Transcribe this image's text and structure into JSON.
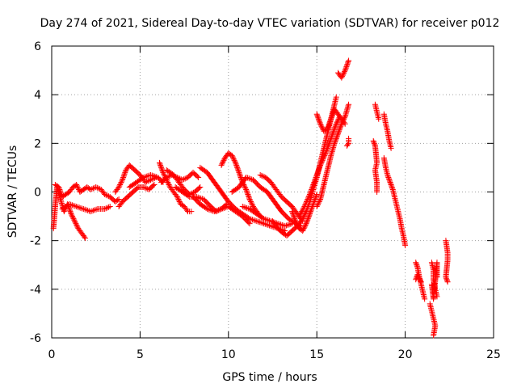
{
  "chart_data": {
    "type": "scatter",
    "title": "Day 274 of 2021, Sidereal Day-to-day VTEC variation (SDTVAR) for receiver p012",
    "xlabel": "GPS time / hours",
    "ylabel": "SDTVAR / TECUs",
    "xlim": [
      0,
      25
    ],
    "ylim": [
      -6,
      6
    ],
    "xticks": [
      0,
      5,
      10,
      15,
      20,
      25
    ],
    "yticks": [
      -6,
      -4,
      -2,
      0,
      2,
      4,
      6
    ],
    "grid": true,
    "marker": "+",
    "color": "#ff0000",
    "series": [
      {
        "name": "SDTVAR",
        "tracks": [
          [
            [
              0.1,
              -1.5
            ],
            [
              0.2,
              -0.6
            ],
            [
              0.3,
              0.2
            ],
            [
              0.5,
              -0.3
            ],
            [
              0.7,
              -0.8
            ],
            [
              0.9,
              -0.5
            ],
            [
              1.1,
              -0.9
            ],
            [
              1.3,
              -1.2
            ],
            [
              1.5,
              -1.5
            ],
            [
              1.7,
              -1.7
            ],
            [
              1.9,
              -1.9
            ]
          ],
          [
            [
              0.2,
              0.3
            ],
            [
              0.4,
              0.2
            ],
            [
              0.6,
              -0.2
            ],
            [
              0.8,
              -0.1
            ],
            [
              1.0,
              0.0
            ],
            [
              1.2,
              0.2
            ],
            [
              1.4,
              0.3
            ],
            [
              1.6,
              0.0
            ],
            [
              1.8,
              0.1
            ],
            [
              2.0,
              0.2
            ],
            [
              2.2,
              0.1
            ],
            [
              2.5,
              0.2
            ],
            [
              2.8,
              0.1
            ],
            [
              3.0,
              -0.1
            ],
            [
              3.3,
              -0.2
            ],
            [
              3.6,
              -0.4
            ],
            [
              3.8,
              -0.3
            ]
          ],
          [
            [
              0.6,
              -0.7
            ],
            [
              1.0,
              -0.5
            ],
            [
              1.4,
              -0.6
            ],
            [
              1.8,
              -0.7
            ],
            [
              2.2,
              -0.8
            ],
            [
              2.6,
              -0.7
            ],
            [
              3.0,
              -0.7
            ],
            [
              3.3,
              -0.6
            ]
          ],
          [
            [
              3.6,
              0.0
            ],
            [
              3.8,
              0.2
            ],
            [
              4.0,
              0.5
            ],
            [
              4.2,
              0.9
            ],
            [
              4.4,
              1.1
            ],
            [
              4.7,
              0.9
            ],
            [
              5.0,
              0.7
            ],
            [
              5.3,
              0.4
            ],
            [
              5.6,
              0.5
            ],
            [
              5.9,
              0.6
            ]
          ],
          [
            [
              3.8,
              -0.6
            ],
            [
              4.0,
              -0.4
            ],
            [
              4.3,
              -0.2
            ],
            [
              4.6,
              0.0
            ],
            [
              4.9,
              0.2
            ],
            [
              5.2,
              0.2
            ],
            [
              5.5,
              0.1
            ],
            [
              5.8,
              0.3
            ]
          ],
          [
            [
              4.4,
              0.2
            ],
            [
              4.8,
              0.4
            ],
            [
              5.2,
              0.6
            ],
            [
              5.6,
              0.7
            ],
            [
              6.0,
              0.6
            ],
            [
              6.3,
              0.4
            ]
          ],
          [
            [
              6.1,
              1.2
            ],
            [
              6.3,
              0.8
            ],
            [
              6.5,
              0.5
            ],
            [
              6.7,
              0.2
            ],
            [
              6.9,
              0.0
            ],
            [
              7.1,
              -0.2
            ],
            [
              7.3,
              -0.5
            ],
            [
              7.5,
              -0.6
            ],
            [
              7.7,
              -0.8
            ],
            [
              7.9,
              -0.8
            ]
          ],
          [
            [
              6.2,
              0.4
            ],
            [
              6.5,
              0.6
            ],
            [
              6.8,
              0.7
            ],
            [
              7.1,
              0.6
            ],
            [
              7.4,
              0.5
            ],
            [
              7.7,
              0.6
            ],
            [
              8.0,
              0.8
            ],
            [
              8.3,
              0.6
            ]
          ],
          [
            [
              6.5,
              0.9
            ],
            [
              6.9,
              0.7
            ],
            [
              7.2,
              0.4
            ],
            [
              7.5,
              0.1
            ],
            [
              7.8,
              -0.1
            ],
            [
              8.1,
              0.0
            ],
            [
              8.4,
              0.2
            ]
          ],
          [
            [
              7.0,
              0.2
            ],
            [
              7.4,
              0.0
            ],
            [
              7.8,
              -0.2
            ],
            [
              8.2,
              -0.2
            ],
            [
              8.6,
              -0.3
            ],
            [
              9.0,
              -0.6
            ],
            [
              9.3,
              -0.8
            ],
            [
              9.6,
              -0.7
            ],
            [
              9.9,
              -0.5
            ]
          ],
          [
            [
              8.4,
              1.0
            ],
            [
              8.8,
              0.8
            ],
            [
              9.2,
              0.4
            ],
            [
              9.6,
              0.0
            ],
            [
              10.0,
              -0.4
            ],
            [
              10.4,
              -0.7
            ],
            [
              10.8,
              -0.9
            ],
            [
              11.2,
              -1.1
            ],
            [
              11.6,
              -1.2
            ],
            [
              12.0,
              -1.3
            ],
            [
              12.4,
              -1.4
            ],
            [
              12.8,
              -1.5
            ],
            [
              13.2,
              -1.6
            ]
          ],
          [
            [
              8.0,
              -0.2
            ],
            [
              8.4,
              -0.5
            ],
            [
              8.8,
              -0.7
            ],
            [
              9.2,
              -0.8
            ],
            [
              9.6,
              -0.7
            ],
            [
              10.0,
              -0.6
            ],
            [
              10.4,
              -0.8
            ],
            [
              10.8,
              -1.0
            ],
            [
              11.2,
              -1.3
            ]
          ],
          [
            [
              9.6,
              1.1
            ],
            [
              9.8,
              1.4
            ],
            [
              10.0,
              1.6
            ],
            [
              10.2,
              1.5
            ],
            [
              10.4,
              1.2
            ],
            [
              10.6,
              0.8
            ],
            [
              10.8,
              0.4
            ],
            [
              11.0,
              0.1
            ],
            [
              11.2,
              -0.3
            ],
            [
              11.4,
              -0.6
            ],
            [
              11.6,
              -0.8
            ],
            [
              11.8,
              -1.0
            ]
          ],
          [
            [
              10.2,
              0.0
            ],
            [
              10.6,
              0.2
            ],
            [
              11.0,
              0.6
            ],
            [
              11.4,
              0.5
            ],
            [
              11.8,
              0.2
            ],
            [
              12.2,
              0.0
            ],
            [
              12.6,
              -0.4
            ],
            [
              13.0,
              -0.8
            ],
            [
              13.4,
              -1.1
            ],
            [
              13.8,
              -1.3
            ],
            [
              14.1,
              -1.4
            ]
          ],
          [
            [
              10.8,
              -0.6
            ],
            [
              11.2,
              -0.7
            ],
            [
              11.6,
              -0.9
            ],
            [
              12.0,
              -1.1
            ],
            [
              12.4,
              -1.2
            ],
            [
              12.8,
              -1.3
            ],
            [
              13.2,
              -1.4
            ],
            [
              13.6,
              -1.3
            ]
          ],
          [
            [
              11.8,
              0.7
            ],
            [
              12.1,
              0.6
            ],
            [
              12.4,
              0.4
            ],
            [
              12.7,
              0.1
            ],
            [
              13.0,
              -0.2
            ],
            [
              13.3,
              -0.4
            ],
            [
              13.6,
              -0.6
            ],
            [
              13.9,
              -0.9
            ],
            [
              14.2,
              -1.2
            ]
          ],
          [
            [
              12.5,
              -1.2
            ],
            [
              12.8,
              -1.5
            ],
            [
              13.1,
              -1.7
            ],
            [
              13.3,
              -1.8
            ],
            [
              13.6,
              -1.6
            ],
            [
              13.9,
              -1.4
            ],
            [
              14.2,
              -1.1
            ],
            [
              14.4,
              -0.8
            ],
            [
              14.6,
              -0.4
            ],
            [
              14.8,
              0.1
            ],
            [
              15.0,
              0.6
            ],
            [
              15.2,
              1.2
            ],
            [
              15.4,
              1.8
            ],
            [
              15.6,
              2.4
            ],
            [
              15.8,
              3.0
            ],
            [
              16.0,
              3.6
            ],
            [
              16.1,
              3.9
            ]
          ],
          [
            [
              13.6,
              -0.8
            ],
            [
              13.8,
              -1.2
            ],
            [
              14.0,
              -1.5
            ],
            [
              14.2,
              -1.6
            ],
            [
              14.4,
              -1.3
            ],
            [
              14.6,
              -0.9
            ],
            [
              14.8,
              -0.5
            ],
            [
              15.0,
              -0.1
            ]
          ],
          [
            [
              14.0,
              -1.0
            ],
            [
              14.3,
              -0.6
            ],
            [
              14.6,
              -0.1
            ],
            [
              14.9,
              0.5
            ],
            [
              15.2,
              1.1
            ],
            [
              15.5,
              1.6
            ],
            [
              15.8,
              2.2
            ],
            [
              16.1,
              2.8
            ],
            [
              16.3,
              3.1
            ]
          ],
          [
            [
              15.0,
              -0.6
            ],
            [
              15.2,
              -0.3
            ],
            [
              15.4,
              0.3
            ],
            [
              15.6,
              0.9
            ],
            [
              15.8,
              1.5
            ],
            [
              16.0,
              2.0
            ],
            [
              16.2,
              2.4
            ],
            [
              16.4,
              2.8
            ],
            [
              16.6,
              3.1
            ],
            [
              16.8,
              3.6
            ]
          ],
          [
            [
              15.0,
              3.2
            ],
            [
              15.2,
              2.8
            ],
            [
              15.4,
              2.5
            ],
            [
              15.6,
              2.6
            ],
            [
              15.8,
              3.0
            ],
            [
              16.0,
              3.4
            ],
            [
              16.2,
              3.2
            ],
            [
              16.4,
              3.0
            ],
            [
              16.6,
              2.8
            ]
          ],
          [
            [
              16.2,
              4.9
            ],
            [
              16.4,
              4.7
            ],
            [
              16.6,
              5.0
            ],
            [
              16.8,
              5.4
            ]
          ],
          [
            [
              16.7,
              1.9
            ],
            [
              16.8,
              2.0
            ],
            [
              16.8,
              2.2
            ]
          ],
          [
            [
              18.3,
              3.6
            ],
            [
              18.4,
              3.3
            ],
            [
              18.5,
              3.0
            ]
          ],
          [
            [
              18.2,
              2.1
            ],
            [
              18.3,
              1.9
            ],
            [
              18.4,
              1.2
            ],
            [
              18.3,
              0.9
            ],
            [
              18.4,
              0.4
            ],
            [
              18.4,
              0.0
            ]
          ],
          [
            [
              18.8,
              3.2
            ],
            [
              18.9,
              2.8
            ],
            [
              19.0,
              2.5
            ],
            [
              19.1,
              2.1
            ],
            [
              19.2,
              1.8
            ]
          ],
          [
            [
              18.8,
              1.4
            ],
            [
              18.9,
              1.0
            ],
            [
              19.0,
              0.7
            ],
            [
              19.1,
              0.5
            ],
            [
              19.2,
              0.3
            ],
            [
              19.3,
              0.1
            ],
            [
              19.4,
              -0.2
            ],
            [
              19.5,
              -0.5
            ],
            [
              19.6,
              -0.8
            ],
            [
              19.7,
              -1.1
            ],
            [
              19.8,
              -1.5
            ],
            [
              19.9,
              -1.8
            ],
            [
              20.0,
              -2.2
            ]
          ],
          [
            [
              20.6,
              -2.9
            ],
            [
              20.7,
              -3.1
            ],
            [
              20.8,
              -3.5
            ],
            [
              20.9,
              -3.8
            ],
            [
              21.0,
              -4.1
            ],
            [
              21.1,
              -4.4
            ]
          ],
          [
            [
              20.6,
              -3.6
            ],
            [
              20.7,
              -3.4
            ],
            [
              20.9,
              -3.7
            ]
          ],
          [
            [
              21.4,
              -4.6
            ],
            [
              21.5,
              -4.9
            ],
            [
              21.6,
              -5.2
            ],
            [
              21.7,
              -5.5
            ],
            [
              21.6,
              -5.9
            ]
          ],
          [
            [
              21.5,
              -2.9
            ],
            [
              21.6,
              -3.2
            ],
            [
              21.6,
              -3.6
            ],
            [
              21.7,
              -4.0
            ],
            [
              21.8,
              -4.3
            ]
          ],
          [
            [
              21.5,
              -3.8
            ],
            [
              21.6,
              -4.4
            ],
            [
              21.8,
              -2.9
            ],
            [
              21.8,
              -3.5
            ]
          ],
          [
            [
              22.3,
              -2.0
            ],
            [
              22.4,
              -2.5
            ],
            [
              22.4,
              -2.8
            ],
            [
              22.3,
              -3.5
            ],
            [
              22.4,
              -3.7
            ]
          ]
        ]
      }
    ]
  }
}
